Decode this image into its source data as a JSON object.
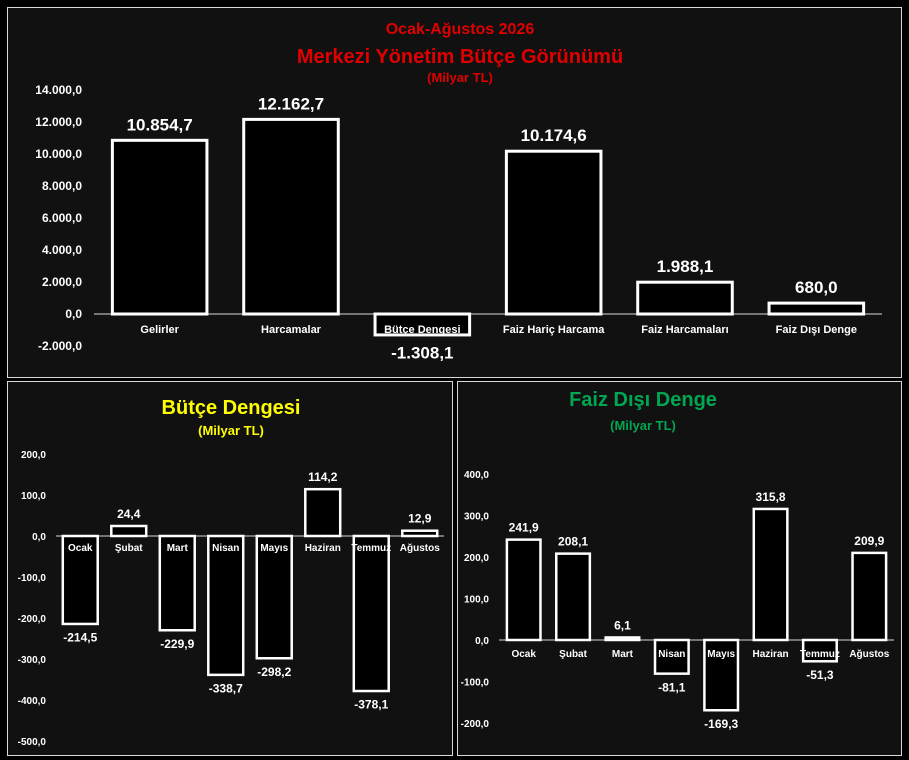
{
  "chart_data": [
    {
      "type": "bar",
      "title_line1": "Ocak-Ağustos 2026",
      "title_line2": "Merkezi Yönetim Bütçe Görünümü",
      "subtitle": "(Milyar TL)",
      "categories": [
        "Gelirler",
        "Harcamalar",
        "Bütçe Dengesi",
        "Faiz Hariç Harcama",
        "Faiz Harcamaları",
        "Faiz Dışı Denge"
      ],
      "values": [
        10854.7,
        12162.7,
        -1308.1,
        10174.6,
        1988.1,
        680.0
      ],
      "value_labels": [
        "10.854,7",
        "12.162,7",
        "-1.308,1",
        "10.174,6",
        "1.988,1",
        "680,0"
      ],
      "yticks": [
        "14.000,0",
        "12.000,0",
        "10.000,0",
        "8.000,0",
        "6.000,0",
        "4.000,0",
        "2.000,0",
        "0,0",
        "-2.000,0"
      ],
      "ylim": [
        -2000,
        14000
      ],
      "grid": false,
      "colors": {
        "title": "#e00000",
        "bar_stroke": "#ffffff",
        "bar_fill": "#000000"
      }
    },
    {
      "type": "bar",
      "title": "Bütçe Dengesi",
      "subtitle": "(Milyar TL)",
      "categories": [
        "Ocak",
        "Şubat",
        "Mart",
        "Nisan",
        "Mayıs",
        "Haziran",
        "Temmuz",
        "Ağustos"
      ],
      "values": [
        -214.5,
        24.4,
        -229.9,
        -338.7,
        -298.2,
        114.2,
        -378.1,
        12.9
      ],
      "value_labels": [
        "-214,5",
        "24,4",
        "-229,9",
        "-338,7",
        "-298,2",
        "114,2",
        "-378,1",
        "12,9"
      ],
      "yticks": [
        "200,0",
        "100,0",
        "0,0",
        "-100,0",
        "-200,0",
        "-300,0",
        "-400,0",
        "-500,0"
      ],
      "ylim": [
        -500,
        200
      ],
      "grid": false,
      "colors": {
        "title": "#ffff00",
        "bar_stroke": "#ffffff",
        "bar_fill": "#000000"
      }
    },
    {
      "type": "bar",
      "title": "Faiz Dışı Denge",
      "subtitle": "(Milyar TL)",
      "categories": [
        "Ocak",
        "Şubat",
        "Mart",
        "Nisan",
        "Mayıs",
        "Haziran",
        "Temmuz",
        "Ağustos"
      ],
      "values": [
        241.9,
        208.1,
        6.1,
        -81.1,
        -169.3,
        315.8,
        -51.3,
        209.9
      ],
      "value_labels": [
        "241,9",
        "208,1",
        "6,1",
        "-81,1",
        "-169,3",
        "315,8",
        "-51,3",
        "209,9"
      ],
      "yticks": [
        "400,0",
        "300,0",
        "200,0",
        "100,0",
        "0,0",
        "-100,0",
        "-200,0"
      ],
      "ylim": [
        -200,
        400
      ],
      "grid": false,
      "colors": {
        "title": "#00a651",
        "bar_stroke": "#ffffff",
        "bar_fill": "#000000"
      }
    }
  ]
}
